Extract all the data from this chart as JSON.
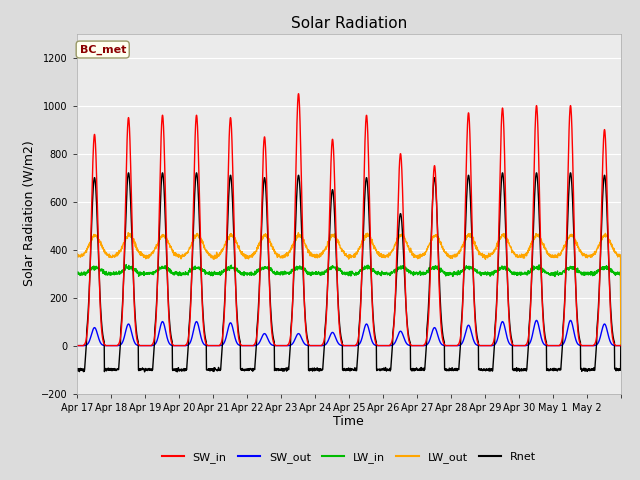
{
  "title": "Solar Radiation",
  "xlabel": "Time",
  "ylabel": "Solar Radiation (W/m2)",
  "ylim": [
    -200,
    1300
  ],
  "yticks": [
    -200,
    0,
    200,
    400,
    600,
    800,
    1000,
    1200
  ],
  "date_labels": [
    "Apr 17",
    "Apr 18",
    "Apr 19",
    "Apr 20",
    "Apr 21",
    "Apr 22",
    "Apr 23",
    "Apr 24",
    "Apr 25",
    "Apr 26",
    "Apr 27",
    "Apr 28",
    "Apr 29",
    "Apr 30",
    "May 1",
    "May 2"
  ],
  "n_days": 16,
  "background_color": "#dcdcdc",
  "plot_bg_color": "#ebebeb",
  "annotation_text": "BC_met",
  "annotation_fg": "#8b0000",
  "annotation_bg": "#fffff0",
  "sw_in_color": "#ff0000",
  "sw_out_color": "#0000ff",
  "lw_in_color": "#00bb00",
  "lw_out_color": "#ffa500",
  "rnet_color": "#000000",
  "sw_in_peaks": [
    880,
    950,
    960,
    960,
    950,
    870,
    1050,
    860,
    960,
    800,
    750,
    970,
    990,
    1000,
    1000,
    900
  ],
  "sw_out_peaks": [
    75,
    90,
    100,
    100,
    95,
    50,
    50,
    55,
    90,
    60,
    75,
    85,
    100,
    105,
    105,
    90
  ],
  "lw_in_base": 300,
  "lw_out_base": 370,
  "rnet_peaks": [
    700,
    720,
    720,
    720,
    710,
    700,
    710,
    650,
    700,
    550,
    700,
    710,
    720,
    720,
    720,
    710
  ],
  "rnet_night": -100
}
